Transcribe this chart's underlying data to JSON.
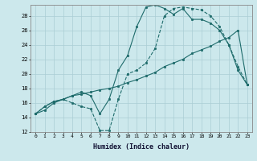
{
  "xlabel": "Humidex (Indice chaleur)",
  "bg_color": "#cce8ec",
  "grid_color": "#aacdd4",
  "line_color": "#1e6b6b",
  "xlim": [
    -0.5,
    23.5
  ],
  "ylim": [
    12,
    29.5
  ],
  "xticks": [
    0,
    1,
    2,
    3,
    4,
    5,
    6,
    7,
    8,
    9,
    10,
    11,
    12,
    13,
    14,
    15,
    16,
    17,
    18,
    19,
    20,
    21,
    22,
    23
  ],
  "yticks": [
    12,
    14,
    16,
    18,
    20,
    22,
    24,
    26,
    28
  ],
  "line1_x": [
    0,
    1,
    2,
    3,
    4,
    5,
    6,
    7,
    8,
    9,
    10,
    11,
    12,
    13,
    14,
    15,
    16,
    17,
    18,
    19,
    20,
    21,
    22,
    23
  ],
  "line1_y": [
    14.5,
    15.5,
    16.2,
    16.5,
    16.0,
    15.5,
    15.2,
    12.2,
    12.2,
    16.5,
    20.0,
    20.5,
    21.5,
    23.5,
    28.0,
    29.0,
    29.2,
    29.0,
    28.8,
    28.0,
    26.5,
    24.0,
    21.0,
    18.5
  ],
  "line2_x": [
    0,
    1,
    2,
    3,
    4,
    5,
    6,
    7,
    8,
    9,
    10,
    11,
    12,
    13,
    14,
    15,
    16,
    17,
    18,
    19,
    20,
    21,
    22,
    23
  ],
  "line2_y": [
    14.5,
    15.0,
    16.0,
    16.5,
    17.0,
    17.2,
    17.5,
    17.8,
    18.0,
    18.3,
    18.8,
    19.2,
    19.7,
    20.2,
    21.0,
    21.5,
    22.0,
    22.8,
    23.3,
    23.8,
    24.5,
    25.0,
    26.0,
    18.5
  ],
  "line3_x": [
    0,
    1,
    2,
    3,
    4,
    5,
    6,
    7,
    8,
    9,
    10,
    11,
    12,
    13,
    14,
    15,
    16,
    17,
    18,
    19,
    20,
    21,
    22,
    23
  ],
  "line3_y": [
    14.5,
    15.5,
    16.2,
    16.5,
    17.0,
    17.5,
    17.0,
    14.5,
    16.5,
    20.5,
    22.5,
    26.5,
    29.2,
    29.5,
    29.0,
    28.2,
    29.0,
    27.5,
    27.5,
    27.0,
    26.0,
    24.0,
    20.5,
    18.5
  ]
}
